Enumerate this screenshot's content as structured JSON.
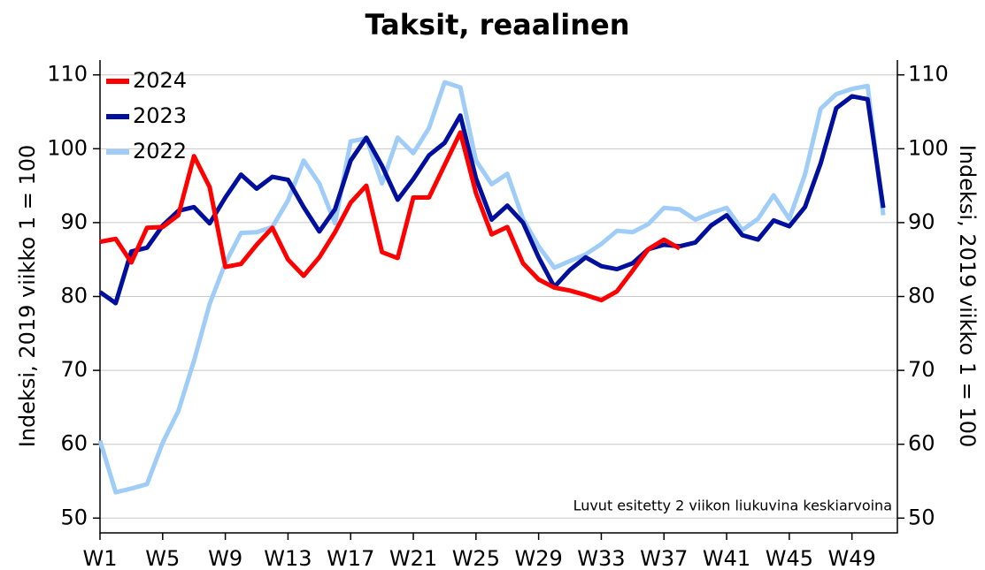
{
  "chart_data": {
    "type": "line",
    "title": "Taksit, reaalinen",
    "ylabel": "Indeksi, 2019 viikko 1 = 100",
    "y2label": "Indeksi, 2019 viikko 1 = 100",
    "annotation": "Luvut esitetty 2 viikon liukuvina keskiarvoina",
    "x": [
      1,
      2,
      3,
      4,
      5,
      6,
      7,
      8,
      9,
      10,
      11,
      12,
      13,
      14,
      15,
      16,
      17,
      18,
      19,
      20,
      21,
      22,
      23,
      24,
      25,
      26,
      27,
      28,
      29,
      30,
      31,
      32,
      33,
      34,
      35,
      36,
      37,
      38,
      39,
      40,
      41,
      42,
      43,
      44,
      45,
      46,
      47,
      48,
      49,
      50,
      51
    ],
    "xlim": [
      1,
      51.9
    ],
    "xticks": [
      {
        "value": 1,
        "label": "W1"
      },
      {
        "value": 5,
        "label": "W5"
      },
      {
        "value": 9,
        "label": "W9"
      },
      {
        "value": 13,
        "label": "W13"
      },
      {
        "value": 17,
        "label": "W17"
      },
      {
        "value": 21,
        "label": "W21"
      },
      {
        "value": 25,
        "label": "W25"
      },
      {
        "value": 29,
        "label": "W29"
      },
      {
        "value": 33,
        "label": "W33"
      },
      {
        "value": 37,
        "label": "W37"
      },
      {
        "value": 41,
        "label": "W41"
      },
      {
        "value": 45,
        "label": "W45"
      },
      {
        "value": 49,
        "label": "W49"
      }
    ],
    "ylim": [
      48,
      112
    ],
    "yticks": [
      50,
      60,
      70,
      80,
      90,
      100,
      110
    ],
    "y2lim": [
      48,
      112
    ],
    "y2ticks": [
      50,
      60,
      70,
      80,
      90,
      100,
      110
    ],
    "grid": true,
    "legend": "upper left",
    "series": [
      {
        "name": "2024",
        "color": "#ff0000",
        "values": [
          87.4,
          87.8,
          84.6,
          89.3,
          89.4,
          91,
          99,
          94.8,
          84,
          84.4,
          87,
          89.3,
          85,
          82.8,
          85.3,
          88.7,
          92.7,
          95,
          86,
          85.2,
          93.4,
          93.4,
          97.8,
          102.2,
          94,
          88.4,
          89.4,
          84.5,
          82.3,
          81.2,
          80.8,
          80.2,
          79.5,
          80.7,
          83.5,
          86.4,
          87.7,
          86.5,
          null,
          null,
          null,
          null,
          null,
          null,
          null,
          null,
          null,
          null,
          null,
          null,
          null
        ]
      },
      {
        "name": "2023",
        "color": "#00109c",
        "values": [
          80.6,
          79.1,
          86.1,
          86.6,
          89.6,
          91.6,
          92.1,
          89.9,
          93.4,
          96.5,
          94.6,
          96.2,
          95.8,
          92.1,
          88.8,
          91.8,
          98.4,
          101.5,
          97.7,
          93.1,
          95.9,
          99.1,
          100.8,
          104.5,
          96,
          90.4,
          92.3,
          90,
          85.3,
          81.3,
          83.6,
          85.3,
          84.1,
          83.7,
          84.5,
          86.4,
          87,
          86.8,
          87.3,
          89.6,
          91,
          88.3,
          87.7,
          90.3,
          89.5,
          92.1,
          98,
          105.5,
          107.1,
          106.7,
          92
        ]
      },
      {
        "name": "2022",
        "color": "#9fcdf8",
        "values": [
          60.5,
          53.5,
          54,
          54.6,
          60.2,
          64.5,
          71.3,
          79,
          84.5,
          88.6,
          88.7,
          89.4,
          93,
          98.4,
          95.3,
          89.9,
          101,
          101.4,
          95.3,
          101.5,
          99.4,
          102.8,
          109,
          108.3,
          98.4,
          95.2,
          96.6,
          90.5,
          86.8,
          83.9,
          84.8,
          85.7,
          87.1,
          88.9,
          88.7,
          89.8,
          92,
          91.8,
          90.4,
          91.3,
          92,
          89,
          90.5,
          93.7,
          90.5,
          96.5,
          105.4,
          107.4,
          108.1,
          108.5,
          91
        ]
      }
    ]
  }
}
